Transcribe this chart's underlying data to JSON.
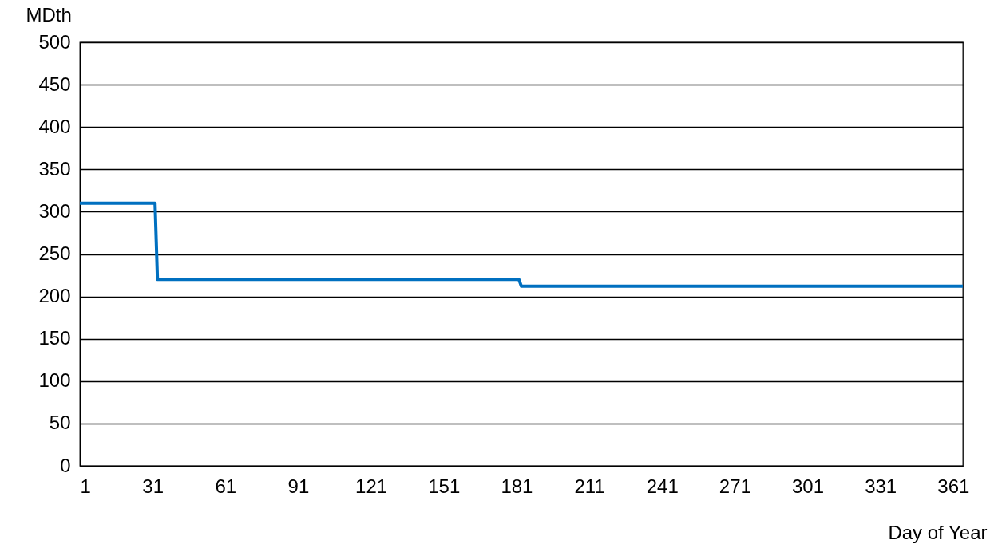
{
  "chart_data": {
    "type": "line",
    "xlabel": "Day of Year",
    "ylabel": "MDth",
    "series": [
      {
        "color": "#0070c0",
        "x": [
          1,
          32,
          33,
          182,
          183,
          365
        ],
        "values": [
          310,
          310,
          220,
          220,
          212,
          212
        ]
      }
    ],
    "xlim": [
      1,
      365
    ],
    "xticks": [
      1,
      31,
      61,
      91,
      121,
      151,
      181,
      211,
      241,
      271,
      301,
      331,
      361
    ],
    "ylim": [
      0,
      500
    ],
    "yticks": [
      0,
      50,
      100,
      150,
      200,
      250,
      300,
      350,
      400,
      450,
      500
    ],
    "grid": "y",
    "marker": "none",
    "line_style": "solid"
  }
}
